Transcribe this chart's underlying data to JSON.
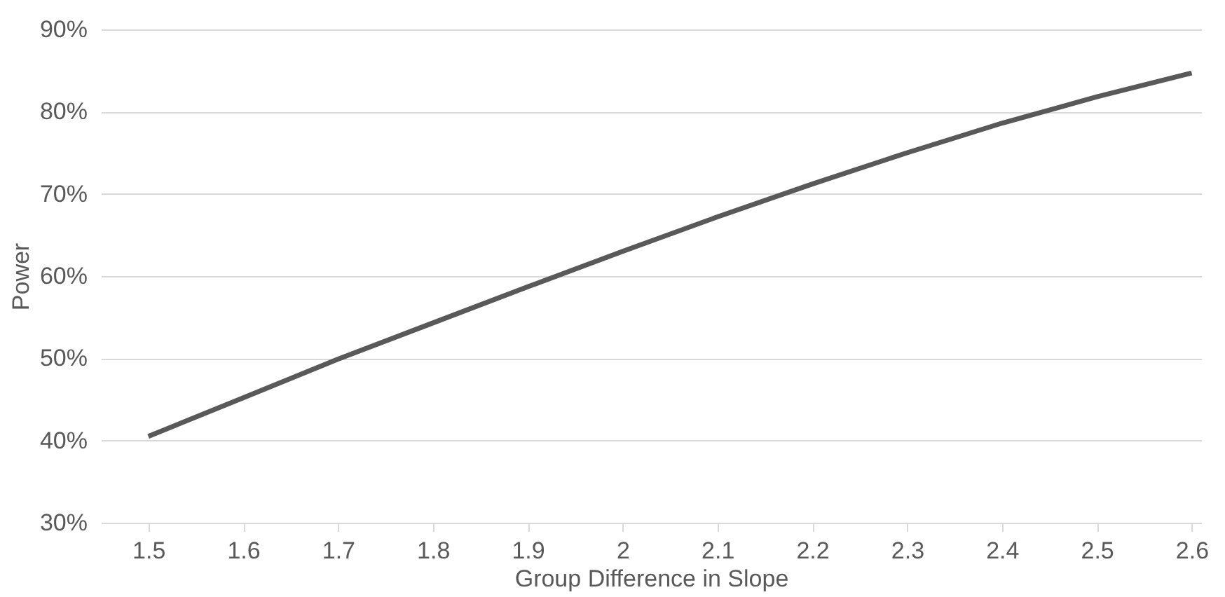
{
  "chart_data": {
    "type": "line",
    "xlabel": "Group Difference in Slope",
    "ylabel": "Power",
    "x": [
      1.5,
      1.6,
      1.7,
      1.8,
      1.9,
      2.0,
      2.1,
      2.2,
      2.3,
      2.4,
      2.5,
      2.6
    ],
    "series": [
      {
        "color": "#595959",
        "values": [
          40.5,
          45.2,
          49.9,
          54.3,
          58.7,
          63,
          67.2,
          71.2,
          75,
          78.6,
          81.8,
          84.7
        ]
      }
    ],
    "xlim": [
      1.45,
      2.61
    ],
    "xticks": [
      1.5,
      1.6,
      1.7,
      1.8,
      1.9,
      {
        "value": 2,
        "label": "2"
      },
      2.1,
      2.2,
      2.3,
      2.4,
      2.5,
      2.6
    ],
    "ylim": [
      30,
      90
    ],
    "yticks": [
      {
        "value": 30,
        "label": "30%"
      },
      {
        "value": 40,
        "label": "40%"
      },
      {
        "value": 50,
        "label": "50%"
      },
      {
        "value": 60,
        "label": "60%"
      },
      {
        "value": 70,
        "label": "70%"
      },
      {
        "value": 80,
        "label": "80%"
      },
      {
        "value": 90,
        "label": "90%"
      }
    ],
    "grid": "y",
    "marker": "none",
    "line_style": "solid"
  }
}
